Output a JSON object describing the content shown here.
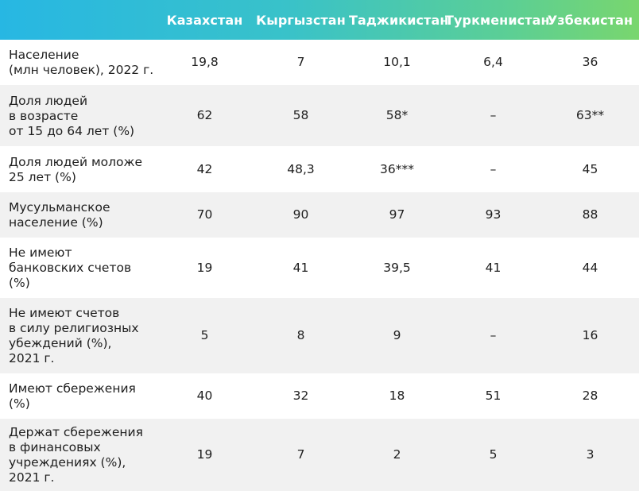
{
  "header": {
    "corner": "",
    "countries": [
      "Казахстан",
      "Кыргызстан",
      "Таджикистан",
      "Туркменистан",
      "Узбекистан"
    ]
  },
  "rows": [
    {
      "label_lines": [
        "Население",
        "(млн человек), 2022 г."
      ],
      "values": [
        "19,8",
        "7",
        "10,1",
        "6,4",
        "36"
      ]
    },
    {
      "label_lines": [
        "Доля людей",
        "в возрасте",
        "от 15 до 64 лет (%)"
      ],
      "values": [
        "62",
        "58",
        "58*",
        "–",
        "63**"
      ]
    },
    {
      "label_lines": [
        "Доля людей моложе",
        "25 лет (%)"
      ],
      "values": [
        "42",
        "48,3",
        "36***",
        "–",
        "45"
      ]
    },
    {
      "label_lines": [
        "Мусульманское",
        "население (%)"
      ],
      "values": [
        "70",
        "90",
        "97",
        "93",
        "88"
      ]
    },
    {
      "label_lines": [
        "Не имеют",
        "банковских счетов",
        "(%)"
      ],
      "values": [
        "19",
        "41",
        "39,5",
        "41",
        "44"
      ]
    },
    {
      "label_lines": [
        "Не имеют счетов",
        "в силу религиозных",
        "убеждений (%),",
        "2021 г."
      ],
      "values": [
        "5",
        "8",
        "9",
        "–",
        "16"
      ]
    },
    {
      "label_lines": [
        "Имеют сбережения",
        "(%)"
      ],
      "values": [
        "40",
        "32",
        "18",
        "51",
        "28"
      ]
    },
    {
      "label_lines": [
        "Держат сбережения",
        "в финансовых",
        "учреждениях (%),",
        "2021 г."
      ],
      "values": [
        "19",
        "7",
        "2",
        "5",
        "3"
      ]
    }
  ]
}
